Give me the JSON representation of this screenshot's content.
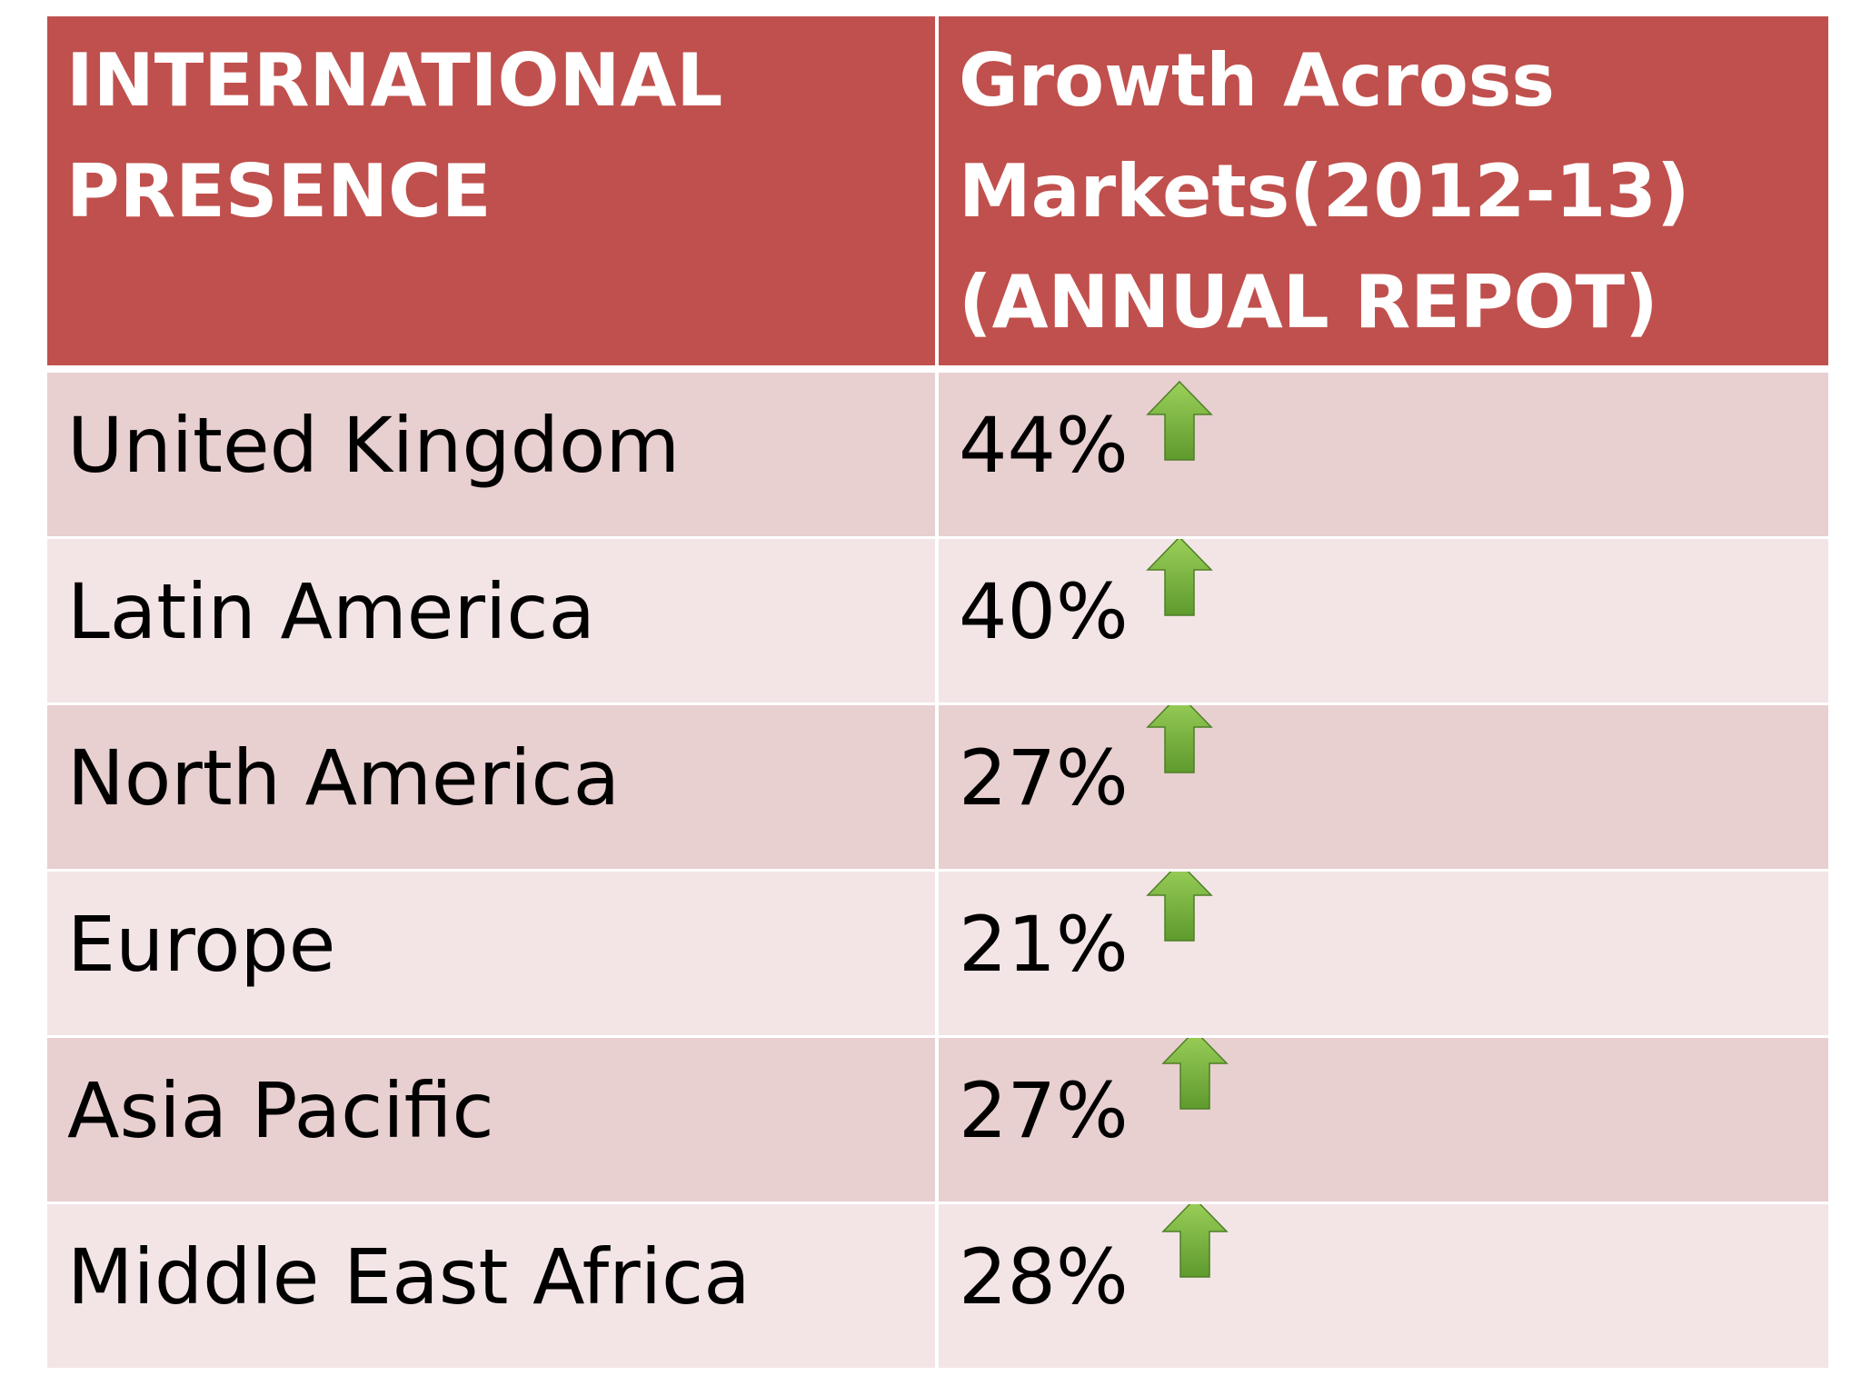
{
  "table": {
    "headers": [
      "INTERNATIONAL PRESENCE",
      "Growth Across Markets(2012-13)(ANNUAL REPOT)"
    ],
    "rows": [
      {
        "region": "United Kingdom",
        "growth": "44%",
        "trend_icon": "up-arrow"
      },
      {
        "region": "Latin America",
        "growth": "40%",
        "trend_icon": "up-arrow"
      },
      {
        "region": "North America",
        "growth": "27%",
        "trend_icon": "up-arrow"
      },
      {
        "region": "Europe",
        "growth": "21%",
        "trend_icon": "up-arrow"
      },
      {
        "region": "Asia Pacific",
        "growth": "27%",
        "trend_icon": "up-arrow"
      },
      {
        "region": "Middle East Africa",
        "growth": "28%",
        "trend_icon": "up-arrow"
      }
    ]
  },
  "colors": {
    "header_bg": "#c0504d",
    "header_text": "#ffffff",
    "row_dark": "#e8cfd0",
    "row_light": "#f3e5e6",
    "arrow_green": "#77b13f"
  }
}
